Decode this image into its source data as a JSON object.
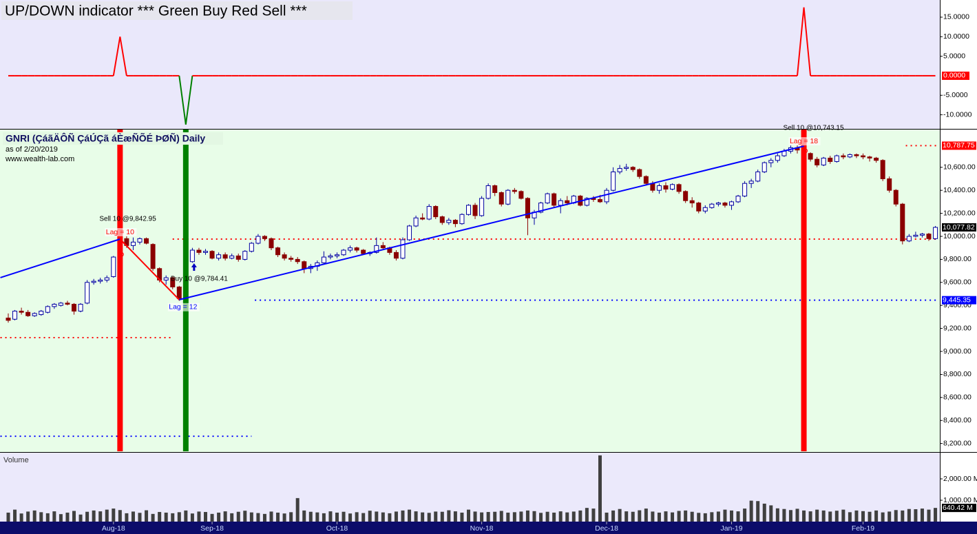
{
  "chart_data": {
    "type": "candlestick",
    "title": "GNRI (ÇáãÄÔÑ ÇáÚÇã áÈæÑÕÉ ÞØÑ) Daily",
    "subtitle": "as of 2/20/2019",
    "source": "www.wealth-lab.com",
    "categories": [
      null,
      null,
      null,
      null,
      null,
      null,
      null,
      null,
      null,
      null,
      null,
      null,
      null,
      null,
      null,
      null,
      "Aug-18",
      null,
      null,
      null,
      null,
      null,
      null,
      null,
      null,
      null,
      null,
      null,
      null,
      null,
      null,
      "Sep-18",
      null,
      null,
      null,
      null,
      null,
      null,
      null,
      null,
      null,
      null,
      null,
      null,
      null,
      null,
      null,
      null,
      null,
      null,
      "Oct-18",
      null,
      null,
      null,
      null,
      null,
      null,
      null,
      null,
      null,
      null,
      null,
      null,
      null,
      null,
      null,
      null,
      null,
      null,
      null,
      null,
      null,
      "Nov-18",
      null,
      null,
      null,
      null,
      null,
      null,
      null,
      null,
      null,
      null,
      null,
      null,
      null,
      null,
      null,
      null,
      null,
      null,
      "Dec-18",
      null,
      null,
      null,
      null,
      null,
      null,
      null,
      null,
      null,
      null,
      null,
      null,
      null,
      null,
      null,
      null,
      null,
      null,
      "Jan-19",
      null,
      null,
      null,
      null,
      null,
      null,
      null,
      null,
      null,
      null,
      null,
      null,
      null,
      null,
      null,
      null,
      null,
      null,
      null,
      "Feb-19",
      null,
      null,
      null,
      null,
      null,
      null,
      null,
      null,
      null,
      null,
      null
    ],
    "ohlc": [
      [
        9290,
        9330,
        9250,
        9270
      ],
      [
        9280,
        9360,
        9270,
        9350
      ],
      [
        9350,
        9380,
        9320,
        9340
      ],
      [
        9340,
        9360,
        9300,
        9310
      ],
      [
        9310,
        9340,
        9300,
        9330
      ],
      [
        9320,
        9360,
        9310,
        9350
      ],
      [
        9340,
        9400,
        9330,
        9390
      ],
      [
        9390,
        9420,
        9370,
        9410
      ],
      [
        9400,
        9430,
        9390,
        9420
      ],
      [
        9420,
        9440,
        9400,
        9410
      ],
      [
        9410,
        9420,
        9320,
        9350
      ],
      [
        9350,
        9420,
        9340,
        9410
      ],
      [
        9420,
        9620,
        9410,
        9600
      ],
      [
        9600,
        9630,
        9580,
        9610
      ],
      [
        9610,
        9640,
        9590,
        9620
      ],
      [
        9620,
        9660,
        9600,
        9640
      ],
      [
        9650,
        9830,
        9640,
        9820
      ],
      [
        9820,
        10000,
        9810,
        9980
      ],
      [
        9980,
        10000,
        9900,
        9920
      ],
      [
        9920,
        9990,
        9880,
        9950
      ],
      [
        9950,
        9990,
        9930,
        9980
      ],
      [
        9980,
        9990,
        9930,
        9940
      ],
      [
        9930,
        9940,
        9700,
        9720
      ],
      [
        9720,
        9730,
        9600,
        9620
      ],
      [
        9620,
        9660,
        9580,
        9640
      ],
      [
        9640,
        9650,
        9540,
        9560
      ],
      [
        9560,
        9570,
        9440,
        9460
      ],
      [
        9460,
        9800,
        9450,
        9780
      ],
      [
        9780,
        9900,
        9770,
        9880
      ],
      [
        9880,
        9900,
        9840,
        9860
      ],
      [
        9860,
        9890,
        9840,
        9870
      ],
      [
        9870,
        9880,
        9800,
        9810
      ],
      [
        9810,
        9860,
        9790,
        9840
      ],
      [
        9840,
        9860,
        9790,
        9810
      ],
      [
        9810,
        9850,
        9800,
        9830
      ],
      [
        9830,
        9850,
        9780,
        9800
      ],
      [
        9800,
        9880,
        9790,
        9870
      ],
      [
        9870,
        9950,
        9860,
        9940
      ],
      [
        9940,
        10020,
        9930,
        10000
      ],
      [
        10000,
        10010,
        9960,
        9980
      ],
      [
        9980,
        9990,
        9880,
        9900
      ],
      [
        9900,
        9910,
        9820,
        9840
      ],
      [
        9840,
        9860,
        9790,
        9810
      ],
      [
        9810,
        9830,
        9780,
        9800
      ],
      [
        9800,
        9820,
        9760,
        9780
      ],
      [
        9780,
        9790,
        9680,
        9720
      ],
      [
        9720,
        9760,
        9680,
        9740
      ],
      [
        9740,
        9790,
        9700,
        9770
      ],
      [
        9770,
        9870,
        9760,
        9820
      ],
      [
        9820,
        9850,
        9800,
        9830
      ],
      [
        9830,
        9860,
        9810,
        9840
      ],
      [
        9840,
        9890,
        9830,
        9880
      ],
      [
        9880,
        9920,
        9860,
        9900
      ],
      [
        9900,
        9910,
        9860,
        9880
      ],
      [
        9880,
        9890,
        9840,
        9850
      ],
      [
        9850,
        9870,
        9830,
        9860
      ],
      [
        9860,
        9990,
        9850,
        9920
      ],
      [
        9920,
        9950,
        9880,
        9900
      ],
      [
        9900,
        9910,
        9840,
        9860
      ],
      [
        9860,
        9880,
        9790,
        9810
      ],
      [
        9810,
        9990,
        9800,
        9970
      ],
      [
        9970,
        10100,
        9960,
        10090
      ],
      [
        10090,
        10180,
        10080,
        10160
      ],
      [
        10160,
        10200,
        10140,
        10150
      ],
      [
        10150,
        10280,
        10140,
        10260
      ],
      [
        10260,
        10270,
        10150,
        10170
      ],
      [
        10170,
        10180,
        10100,
        10120
      ],
      [
        10120,
        10160,
        10100,
        10140
      ],
      [
        10140,
        10150,
        10080,
        10110
      ],
      [
        10110,
        10200,
        10100,
        10190
      ],
      [
        10190,
        10280,
        10180,
        10270
      ],
      [
        10270,
        10290,
        10150,
        10180
      ],
      [
        10180,
        10350,
        10170,
        10330
      ],
      [
        10330,
        10460,
        10320,
        10440
      ],
      [
        10440,
        10450,
        10350,
        10380
      ],
      [
        10380,
        10390,
        10260,
        10280
      ],
      [
        10280,
        10410,
        10270,
        10400
      ],
      [
        10400,
        10420,
        10370,
        10390
      ],
      [
        10390,
        10400,
        10320,
        10330
      ],
      [
        10330,
        10340,
        10010,
        10160
      ],
      [
        10160,
        10230,
        10100,
        10210
      ],
      [
        10210,
        10300,
        10200,
        10290
      ],
      [
        10290,
        10380,
        10280,
        10370
      ],
      [
        10370,
        10380,
        10250,
        10270
      ],
      [
        10270,
        10330,
        10200,
        10310
      ],
      [
        10310,
        10350,
        10270,
        10290
      ],
      [
        10290,
        10360,
        10280,
        10350
      ],
      [
        10350,
        10360,
        10260,
        10270
      ],
      [
        10270,
        10340,
        10260,
        10330
      ],
      [
        10330,
        10350,
        10300,
        10320
      ],
      [
        10320,
        10360,
        10290,
        10300
      ],
      [
        10300,
        10420,
        10280,
        10400
      ],
      [
        10400,
        10600,
        10390,
        10560
      ],
      [
        10560,
        10620,
        10540,
        10590
      ],
      [
        10590,
        10630,
        10570,
        10600
      ],
      [
        10600,
        10610,
        10560,
        10580
      ],
      [
        10580,
        10590,
        10500,
        10520
      ],
      [
        10520,
        10530,
        10440,
        10460
      ],
      [
        10460,
        10480,
        10380,
        10400
      ],
      [
        10400,
        10460,
        10370,
        10440
      ],
      [
        10440,
        10470,
        10380,
        10410
      ],
      [
        10410,
        10460,
        10400,
        10450
      ],
      [
        10450,
        10460,
        10370,
        10390
      ],
      [
        10390,
        10400,
        10290,
        10310
      ],
      [
        10310,
        10340,
        10250,
        10290
      ],
      [
        10290,
        10300,
        10200,
        10220
      ],
      [
        10220,
        10270,
        10200,
        10250
      ],
      [
        10250,
        10290,
        10240,
        10280
      ],
      [
        10280,
        10300,
        10260,
        10290
      ],
      [
        10290,
        10300,
        10250,
        10270
      ],
      [
        10270,
        10310,
        10230,
        10300
      ],
      [
        10300,
        10360,
        10290,
        10350
      ],
      [
        10350,
        10480,
        10340,
        10460
      ],
      [
        10460,
        10500,
        10420,
        10480
      ],
      [
        10480,
        10580,
        10470,
        10560
      ],
      [
        10560,
        10650,
        10550,
        10640
      ],
      [
        10640,
        10680,
        10600,
        10660
      ],
      [
        10660,
        10720,
        10640,
        10700
      ],
      [
        10700,
        10760,
        10690,
        10740
      ],
      [
        10740,
        10790,
        10720,
        10770
      ],
      [
        10770,
        10790,
        10720,
        10750
      ],
      [
        10750,
        10790,
        10690,
        10720
      ],
      [
        10720,
        10730,
        10650,
        10670
      ],
      [
        10670,
        10690,
        10600,
        10620
      ],
      [
        10620,
        10690,
        10610,
        10680
      ],
      [
        10680,
        10700,
        10630,
        10650
      ],
      [
        10650,
        10710,
        10640,
        10700
      ],
      [
        10700,
        10720,
        10670,
        10690
      ],
      [
        10690,
        10720,
        10680,
        10710
      ],
      [
        10710,
        10720,
        10680,
        10700
      ],
      [
        10700,
        10720,
        10670,
        10690
      ],
      [
        10690,
        10700,
        10650,
        10680
      ],
      [
        10680,
        10690,
        10640,
        10660
      ],
      [
        10660,
        10670,
        10480,
        10500
      ],
      [
        10500,
        10520,
        10380,
        10400
      ],
      [
        10400,
        10410,
        10260,
        10280
      ],
      [
        10280,
        10290,
        9930,
        9960
      ],
      [
        9960,
        10020,
        9950,
        10000
      ],
      [
        10000,
        10040,
        9990,
        10010
      ],
      [
        10010,
        10030,
        9990,
        10020
      ],
      [
        10020,
        10030,
        9960,
        9980
      ],
      [
        9980,
        10090,
        9970,
        10077.82
      ]
    ],
    "last_label": "10,077.82",
    "up_color": "#ffffff",
    "up_border": "#0000a0",
    "down_color": "#8b0000",
    "ylim": [
      8132,
      10928
    ],
    "yticks": [
      {
        "value": 8200,
        "label": "8,200.00"
      },
      {
        "value": 8400,
        "label": "8,400.00"
      },
      {
        "value": 8600,
        "label": "8,600.00"
      },
      {
        "value": 8800,
        "label": "8,800.00"
      },
      {
        "value": 9000,
        "label": "9,000.00"
      },
      {
        "value": 9200,
        "label": "9,200.00"
      },
      {
        "value": 9400,
        "label": "9,400.00"
      },
      {
        "value": 9600,
        "label": "9,600.00"
      },
      {
        "value": 9800,
        "label": "9,800.00"
      },
      {
        "value": 10000,
        "label": "10,000.00"
      },
      {
        "value": 10200,
        "label": "10,200.00"
      },
      {
        "value": 10400,
        "label": "10,400.00"
      },
      {
        "value": 10600,
        "label": "10,600.00"
      }
    ],
    "trendlines": [
      {
        "color": "#0000ff",
        "x": [
          -1.2,
          17
        ],
        "y": [
          9641,
          9976
        ]
      },
      {
        "color": "#ff0000",
        "x": [
          17,
          26
        ],
        "y": [
          9976,
          9449
        ]
      },
      {
        "color": "#0000ff",
        "x": [
          26,
          121
        ],
        "y": [
          9449,
          10784
        ]
      }
    ],
    "levels": [
      {
        "value": 9976,
        "color": "#ff0000",
        "from": 25,
        "to": 142
      },
      {
        "value": 9120,
        "color": "#ff0000",
        "from": -1.2,
        "to": 25
      },
      {
        "value": 10787.75,
        "label": "10,787.75",
        "color": "#ff0000",
        "from": 136.5,
        "to": 142
      },
      {
        "value": 9445.35,
        "label": "9,445.35",
        "color": "#0000ff",
        "from": 37.5,
        "to": 142
      },
      {
        "value": 8263,
        "color": "#0000ff",
        "from": -1.2,
        "to": 37
      }
    ],
    "trades": [
      {
        "label": "Sell 10 @9,842.95",
        "price": 9842.95,
        "lag": "Lag = 10",
        "index": 17,
        "color": "#ff0000",
        "text_color": "#ff0000"
      },
      {
        "label": "Buy 10 @9,784.41",
        "price": 9784.41,
        "lag": "Lag = 12",
        "index": 27,
        "color": "#008000",
        "text_color": "#0000ff"
      },
      {
        "label": "Sell 10 @10,743.15",
        "price": 10743.15,
        "lag": "Lag = 18",
        "index": 121,
        "color": "#ff0000",
        "text_color": "#ff0000"
      }
    ],
    "indicator": {
      "title": "UP/DOWN indicator *** Green Buy Red Sell ***",
      "color": "#ff0000",
      "neg_color": "#008000",
      "ylim": [
        -13.6,
        19.4
      ],
      "yticks": [
        {
          "value": 15,
          "label": "15.0000"
        },
        {
          "value": 10,
          "label": "10.0000"
        },
        {
          "value": 5,
          "label": "5.0000"
        },
        {
          "value": 0,
          "label": "0.0000"
        },
        {
          "value": -5,
          "label": "-5.0000"
        },
        {
          "value": -10,
          "label": "-10.0000"
        }
      ],
      "values": [
        0,
        0,
        0,
        0,
        0,
        0,
        0,
        0,
        0,
        0,
        0,
        0,
        0,
        0,
        0,
        0,
        0,
        10,
        0,
        0,
        0,
        0,
        0,
        0,
        0,
        0,
        0,
        -12.5,
        0,
        0,
        0,
        0,
        0,
        0,
        0,
        0,
        0,
        0,
        0,
        0,
        0,
        0,
        0,
        0,
        0,
        0,
        0,
        0,
        0,
        0,
        0,
        0,
        0,
        0,
        0,
        0,
        0,
        0,
        0,
        0,
        0,
        0,
        0,
        0,
        0,
        0,
        0,
        0,
        0,
        0,
        0,
        0,
        0,
        0,
        0,
        0,
        0,
        0,
        0,
        0,
        0,
        0,
        0,
        0,
        0,
        0,
        0,
        0,
        0,
        0,
        0,
        0,
        0,
        0,
        0,
        0,
        0,
        0,
        0,
        0,
        0,
        0,
        0,
        0,
        0,
        0,
        0,
        0,
        0,
        0,
        0,
        0,
        0,
        0,
        0,
        0,
        0,
        0,
        0,
        0,
        0,
        17.5,
        0,
        0,
        0,
        0,
        0,
        0,
        0,
        0,
        0,
        0,
        0,
        0,
        0,
        0,
        0,
        0,
        0,
        0,
        0,
        0
      ]
    },
    "volume": {
      "title": "Volume",
      "color": "#404040",
      "value_label": "640.42 M",
      "ylim": [
        0,
        3225
      ],
      "yticks": [
        {
          "value": 1000,
          "label": "1,000.00 M"
        },
        {
          "value": 2000,
          "label": "2,000.00 M"
        }
      ],
      "values": [
        420,
        560,
        380,
        470,
        520,
        440,
        390,
        480,
        350,
        420,
        500,
        330,
        460,
        520,
        480,
        560,
        610,
        540,
        390,
        470,
        410,
        530,
        360,
        450,
        420,
        390,
        440,
        520,
        380,
        470,
        450,
        360,
        420,
        480,
        390,
        460,
        510,
        430,
        400,
        360,
        470,
        420,
        380,
        440,
        1100,
        520,
        460,
        430,
        390,
        480,
        420,
        460,
        380,
        440,
        400,
        510,
        470,
        430,
        390,
        470,
        520,
        560,
        480,
        430,
        410,
        470,
        460,
        530,
        480,
        420,
        560,
        470,
        430,
        450,
        460,
        500,
        420,
        440,
        470,
        520,
        490,
        410,
        460,
        420,
        480,
        430,
        470,
        520,
        640,
        610,
        3100,
        420,
        520,
        590,
        480,
        460,
        530,
        610,
        470,
        420,
        480,
        430,
        500,
        520,
        460,
        410,
        390,
        440,
        470,
        560,
        520,
        480,
        610,
        980,
        960,
        840,
        760,
        620,
        590,
        540,
        600,
        520,
        480,
        560,
        520,
        470,
        510,
        560,
        440,
        520,
        490,
        460,
        520,
        430,
        470,
        540,
        520,
        590,
        580,
        610,
        560,
        640.42
      ]
    }
  }
}
